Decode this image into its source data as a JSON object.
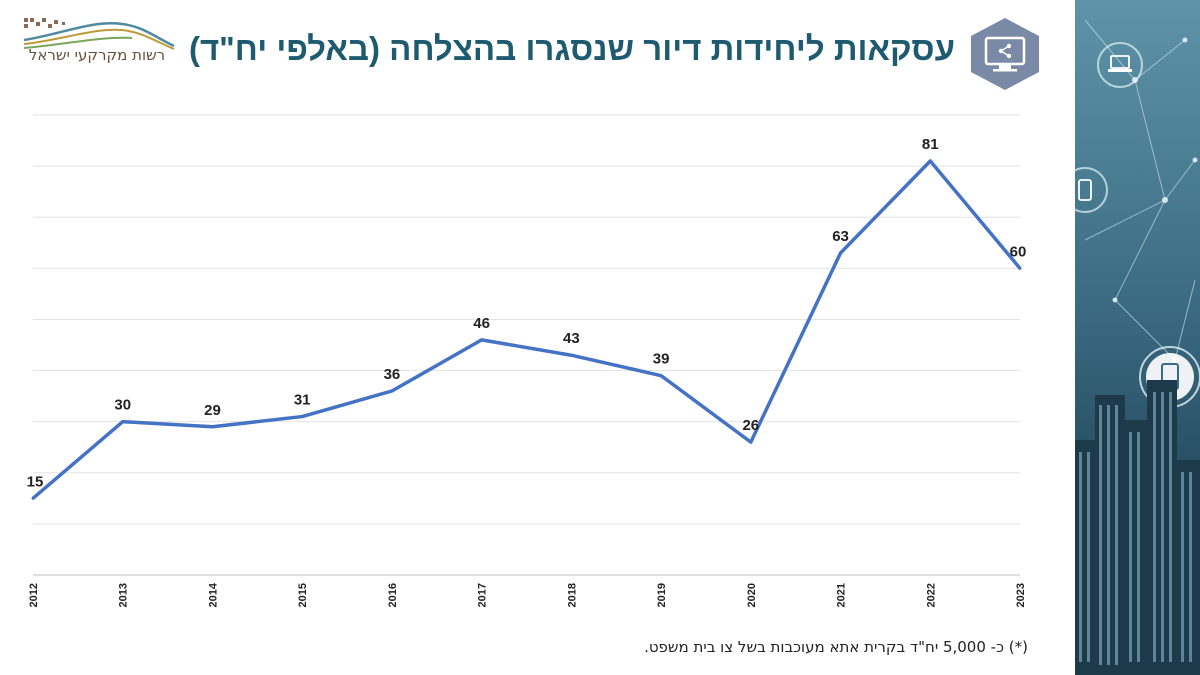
{
  "header": {
    "title": "עסקאות ליחידות דיור שנסגרו בהצלחה (באלפי יח\"ד)",
    "logo_text": "רשות מקרקעי ישראל",
    "badge_icon": "monitor-share-icon"
  },
  "colors": {
    "title": "#1f5b70",
    "line": "#4472c4",
    "badge": "#7a8aa6",
    "side_panel": "#3d6f86"
  },
  "side_panel": {
    "icons": [
      "laptop-icon",
      "phone-icon",
      "tablet-icon"
    ]
  },
  "chart_data": {
    "type": "line",
    "categories": [
      "2012",
      "2013",
      "2014",
      "2015",
      "2016",
      "2017",
      "2018",
      "2019",
      "2020",
      "2021",
      "2022",
      "2023"
    ],
    "values": [
      15,
      30,
      29,
      31,
      36,
      46,
      43,
      39,
      26,
      63,
      81,
      60
    ],
    "title": "עסקאות ליחידות דיור שנסגרו בהצלחה (באלפי יח\"ד)",
    "ylim": [
      0,
      90
    ],
    "grid": true,
    "legend": "none"
  },
  "footnote": "(*) כ- 5,000 יח\"ד בקרית אתא מעוכבות בשל צו בית משפט."
}
